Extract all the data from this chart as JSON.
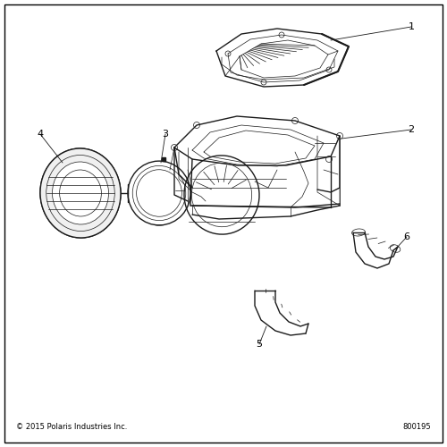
{
  "background_color": "#ffffff",
  "border_color": "#000000",
  "text_color": "#000000",
  "copyright_text": "© 2015 Polaris Industries Inc.",
  "part_number": "800195",
  "line_color": "#1a1a1a",
  "figsize": [
    5.0,
    5.0
  ],
  "dpi": 100
}
